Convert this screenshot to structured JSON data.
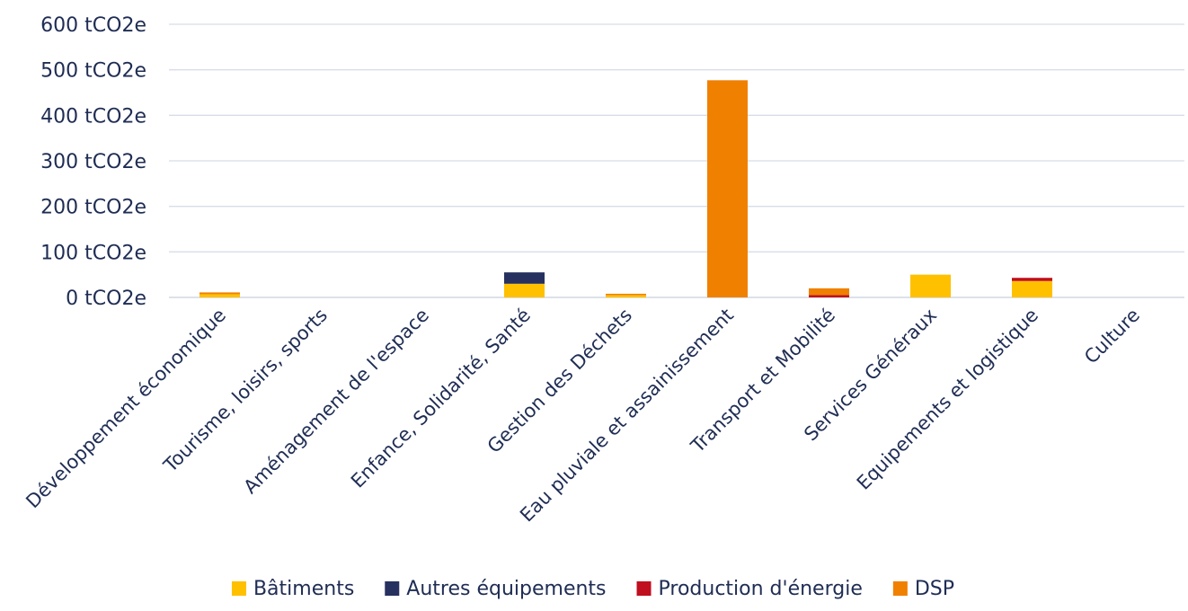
{
  "chart_data": {
    "type": "bar",
    "stacked": true,
    "title": "",
    "xlabel": "",
    "ylabel": "",
    "ylim": [
      0,
      600
    ],
    "yticks": [
      0,
      100,
      200,
      300,
      400,
      500,
      600
    ],
    "ytick_suffix": " tCO2e",
    "grid": true,
    "legend_position": "bottom",
    "categories": [
      "Développement économique",
      "Tourisme, loisirs, sports",
      "Aménagement de l'espace",
      "Enfance, Solidarité, Santé",
      "Gestion des Déchets",
      "Eau pluviale et assainissement",
      "Transport et Mobilité",
      "Services Généraux",
      "Equipements et logistique",
      "Culture"
    ],
    "series": [
      {
        "name": "Bâtiments",
        "color": "#ffc000",
        "values": [
          7,
          0,
          0,
          30,
          5,
          0,
          0,
          50,
          36,
          0
        ]
      },
      {
        "name": "Autres équipements",
        "color": "#26315f",
        "values": [
          0,
          0,
          0,
          25,
          0,
          0,
          0,
          0,
          0,
          0
        ]
      },
      {
        "name": "Production d'énergie",
        "color": "#c00f1f",
        "values": [
          0,
          0,
          0,
          0,
          0,
          0,
          5,
          0,
          7,
          0
        ]
      },
      {
        "name": "DSP",
        "color": "#f08000",
        "values": [
          4,
          0,
          0,
          0,
          3,
          477,
          15,
          0,
          0,
          0
        ]
      }
    ]
  }
}
